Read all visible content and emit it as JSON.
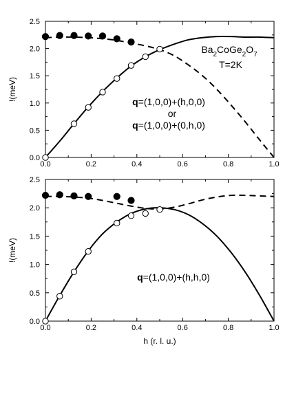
{
  "chart_data": [
    {
      "type": "line",
      "panel": "top",
      "xlabel": "",
      "ylabel": "!(meV)",
      "xlim": [
        0.0,
        1.0
      ],
      "ylim": [
        0.0,
        2.5
      ],
      "xticks": [
        "0.0",
        "0.2",
        "0.4",
        "0.6",
        "0.8",
        "1.0"
      ],
      "yticks": [
        "0.0",
        "0.5",
        "1.0",
        "1.5",
        "2.0",
        "2.5"
      ],
      "annotations": {
        "compound": "Ba₂CoGe₂O₇",
        "temperature": "T=2K",
        "q_bold": "q",
        "line1": "=(1,0,0)+(h,0,0)",
        "or": "or",
        "line2": "=(1,0,0)+(0,h,0)"
      },
      "series": [
        {
          "style": "solid-line",
          "x": [
            0.0,
            0.0625,
            0.125,
            0.1875,
            0.25,
            0.3125,
            0.375,
            0.4375,
            0.5,
            0.5625,
            0.625,
            0.6875,
            0.75,
            0.8125,
            0.875,
            0.9375,
            1.0
          ],
          "y": [
            0.0,
            0.3,
            0.62,
            0.93,
            1.21,
            1.46,
            1.68,
            1.85,
            1.98,
            2.08,
            2.16,
            2.2,
            2.22,
            2.22,
            2.21,
            2.21,
            2.2
          ]
        },
        {
          "style": "dashed-line",
          "x": [
            0.0,
            0.0625,
            0.125,
            0.1875,
            0.25,
            0.3125,
            0.375,
            0.4375,
            0.5,
            0.5625,
            0.625,
            0.6875,
            0.75,
            0.8125,
            0.875,
            0.9375,
            1.0
          ],
          "y": [
            2.2,
            2.21,
            2.21,
            2.2,
            2.18,
            2.15,
            2.1,
            2.05,
            1.98,
            1.87,
            1.7,
            1.5,
            1.25,
            0.96,
            0.65,
            0.32,
            0.0
          ]
        },
        {
          "style": "filled-circles",
          "x": [
            0.0,
            0.0625,
            0.125,
            0.1875,
            0.25,
            0.3125,
            0.375
          ],
          "y": [
            2.22,
            2.24,
            2.24,
            2.23,
            2.23,
            2.18,
            2.12
          ]
        },
        {
          "style": "open-circles",
          "x": [
            0.0,
            0.125,
            0.1875,
            0.25,
            0.3125,
            0.375,
            0.4375,
            0.5
          ],
          "y": [
            0.0,
            0.62,
            0.92,
            1.2,
            1.45,
            1.69,
            1.85,
            1.99
          ]
        }
      ]
    },
    {
      "type": "line",
      "panel": "bottom",
      "xlabel": "h (r. l. u.)",
      "ylabel": "!(meV)",
      "xlim": [
        0.0,
        1.0
      ],
      "ylim": [
        0.0,
        2.5
      ],
      "xticks": [
        "0.0",
        "0.2",
        "0.4",
        "0.6",
        "0.8",
        "1.0"
      ],
      "yticks": [
        "0.0",
        "0.5",
        "1.0",
        "1.5",
        "2.0",
        "2.5"
      ],
      "annotations": {
        "q_bold": "q",
        "line1": "=(1,0,0)+(h,h,0)"
      },
      "series": [
        {
          "style": "solid-line",
          "x": [
            0.0,
            0.0625,
            0.125,
            0.1875,
            0.25,
            0.3125,
            0.375,
            0.4375,
            0.5,
            0.5625,
            0.625,
            0.6875,
            0.75,
            0.8125,
            0.875,
            0.9375,
            1.0
          ],
          "y": [
            0.0,
            0.45,
            0.87,
            1.24,
            1.54,
            1.75,
            1.9,
            1.98,
            2.0,
            1.97,
            1.88,
            1.72,
            1.5,
            1.21,
            0.86,
            0.45,
            0.0
          ]
        },
        {
          "style": "dashed-line",
          "x": [
            0.0,
            0.0625,
            0.125,
            0.1875,
            0.25,
            0.3125,
            0.375,
            0.4375,
            0.5,
            0.5625,
            0.625,
            0.6875,
            0.75,
            0.8125,
            0.875,
            0.9375,
            1.0
          ],
          "y": [
            2.2,
            2.2,
            2.19,
            2.17,
            2.13,
            2.08,
            2.03,
            1.99,
            1.98,
            2.01,
            2.07,
            2.14,
            2.19,
            2.22,
            2.22,
            2.21,
            2.2
          ]
        },
        {
          "style": "filled-circles",
          "x": [
            0.0,
            0.0625,
            0.125,
            0.1875,
            0.3125,
            0.375
          ],
          "y": [
            2.22,
            2.23,
            2.21,
            2.2,
            2.2,
            2.13
          ]
        },
        {
          "style": "open-circles",
          "x": [
            0.0,
            0.0625,
            0.125,
            0.1875,
            0.3125,
            0.375,
            0.4375,
            0.5
          ],
          "y": [
            0.0,
            0.44,
            0.87,
            1.23,
            1.73,
            1.86,
            1.9,
            1.97
          ]
        }
      ]
    }
  ]
}
